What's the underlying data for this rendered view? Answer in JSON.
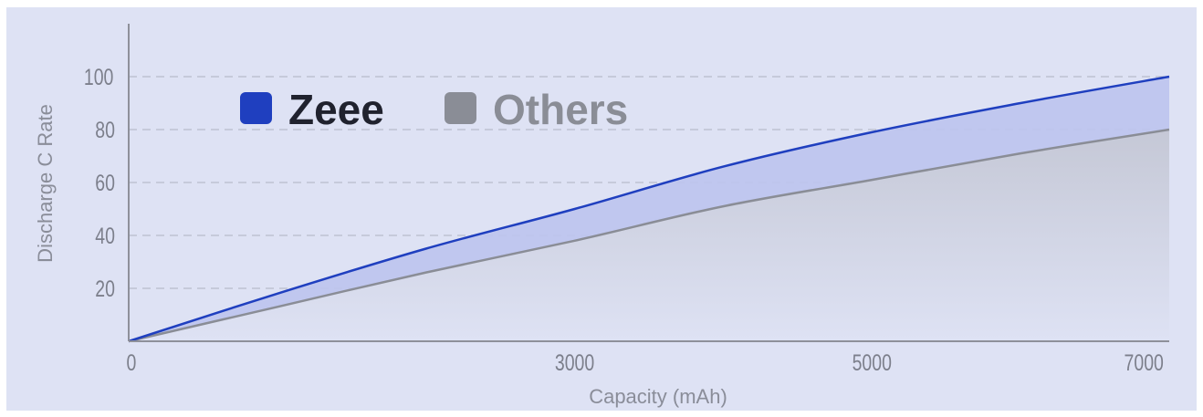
{
  "chart_data": {
    "type": "area",
    "xlabel": "Capacity (mAh)",
    "ylabel": "Discharge C Rate",
    "xlim": [
      0,
      7000
    ],
    "ylim": [
      0,
      120
    ],
    "x_ticks": [
      "0",
      "3000",
      "5000",
      "7000"
    ],
    "x_tick_values": [
      0,
      3000,
      5000,
      7000
    ],
    "y_ticks": [
      "20",
      "40",
      "60",
      "80",
      "100"
    ],
    "y_tick_values": [
      20,
      40,
      60,
      80,
      100
    ],
    "grid": "horizontal-dashed",
    "legend_position": "top-left",
    "series": [
      {
        "name": "Zeee",
        "color": "#1f3fbf",
        "fill": "#bcc4ee",
        "x": [
          0,
          1000,
          2000,
          3000,
          4000,
          5000,
          6000,
          7000
        ],
        "values": [
          0,
          18,
          35,
          50,
          66,
          79,
          90,
          100
        ]
      },
      {
        "name": "Others",
        "color": "#8a8d96",
        "fill": "#cbcedb",
        "x": [
          0,
          1000,
          2000,
          3000,
          4000,
          5000,
          6000,
          7000
        ],
        "values": [
          0,
          13,
          26,
          38,
          51,
          61,
          71,
          80
        ]
      }
    ]
  },
  "colors": {
    "background": "#dee2f4",
    "axis": "#8e909a",
    "grid": "#b9bcc9",
    "tick_text": "#7c7f8b"
  }
}
